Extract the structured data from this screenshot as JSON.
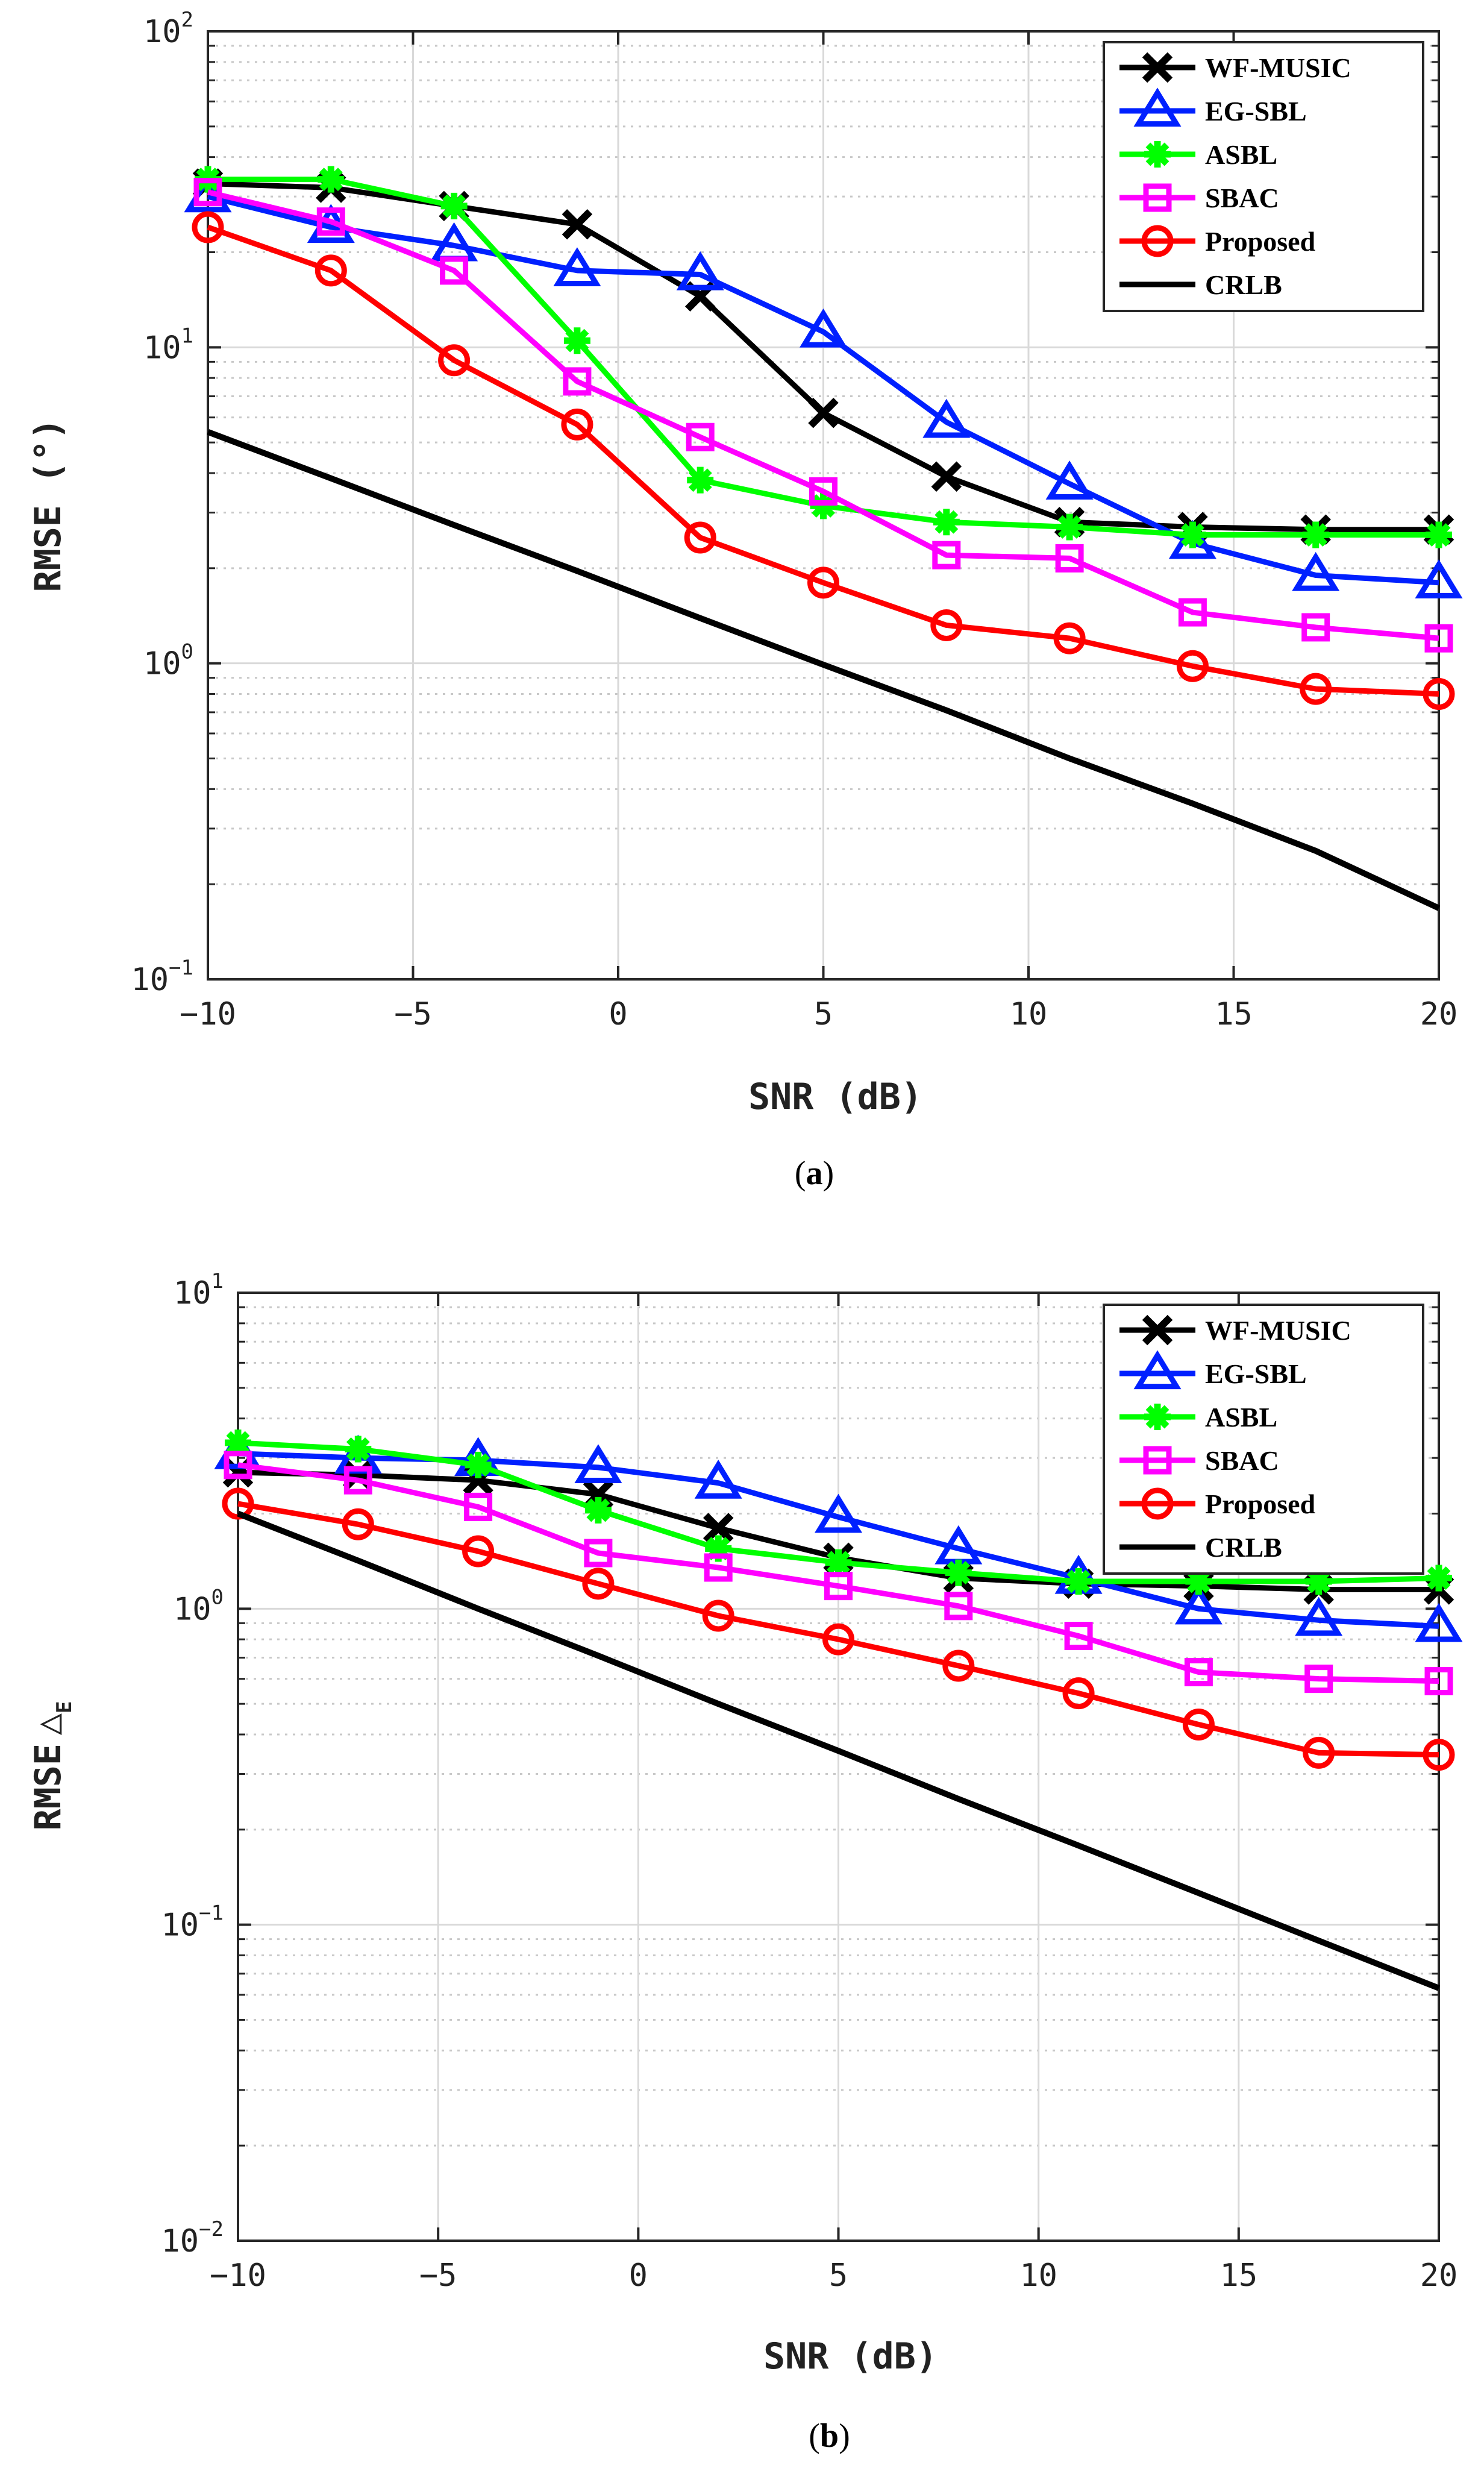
{
  "chart_data": [
    {
      "type": "line",
      "caption_letter": "a",
      "xlabel": "SNR (dB)",
      "ylabel": "RMSE (°)",
      "yscale": "log",
      "xlim": [
        -10,
        20
      ],
      "ylim": [
        0.1,
        100
      ],
      "xticks": [
        "−10",
        "−5",
        "0",
        "5",
        "10",
        "15",
        "20"
      ],
      "xtick_values": [
        -10,
        -5,
        0,
        5,
        10,
        15,
        20
      ],
      "yticks": [
        {
          "base": "10",
          "exp": "−1",
          "value": 0.1
        },
        {
          "base": "10",
          "exp": "0",
          "value": 1
        },
        {
          "base": "10",
          "exp": "1",
          "value": 10
        },
        {
          "base": "10",
          "exp": "2",
          "value": 100
        }
      ],
      "grid": true,
      "legend_position": "top-right",
      "x": [
        -10,
        -7,
        -4,
        -1,
        2,
        5,
        8,
        11,
        14,
        17,
        20
      ],
      "series": [
        {
          "name": "WF-MUSIC",
          "color": "#000000",
          "marker": "x",
          "values": [
            33,
            32,
            28,
            24.5,
            14.5,
            6.2,
            3.9,
            2.8,
            2.7,
            2.65,
            2.65
          ]
        },
        {
          "name": "EG-SBL",
          "color": "#0020ff",
          "marker": "triangle",
          "values": [
            30,
            24,
            21,
            17.5,
            17,
            11.2,
            5.8,
            3.7,
            2.4,
            1.9,
            1.8
          ]
        },
        {
          "name": "ASBL",
          "color": "#00ff00",
          "marker": "star",
          "values": [
            34,
            34,
            28,
            10.5,
            3.8,
            3.15,
            2.8,
            2.7,
            2.55,
            2.55,
            2.55
          ]
        },
        {
          "name": "SBAC",
          "color": "#ff00ff",
          "marker": "square",
          "values": [
            31,
            25,
            17.5,
            7.8,
            5.2,
            3.5,
            2.2,
            2.15,
            1.45,
            1.3,
            1.2
          ]
        },
        {
          "name": "Proposed",
          "color": "#ff0000",
          "marker": "circle",
          "values": [
            24,
            17.5,
            9.1,
            5.7,
            2.5,
            1.8,
            1.32,
            1.2,
            0.98,
            0.83,
            0.8
          ]
        },
        {
          "name": "CRLB",
          "color": "#000000",
          "marker": "none",
          "values": [
            5.4,
            3.85,
            2.74,
            1.96,
            1.39,
            0.99,
            0.71,
            0.5,
            0.36,
            0.255,
            0.168
          ]
        }
      ]
    },
    {
      "type": "line",
      "caption_letter": "b",
      "xlabel": "SNR (dB)",
      "ylabel": "RMSE",
      "ylabel_symbol": "△",
      "ylabel_sub": "E",
      "yscale": "log",
      "xlim": [
        -10,
        20
      ],
      "ylim": [
        0.01,
        10
      ],
      "xticks": [
        "−10",
        "−5",
        "0",
        "5",
        "10",
        "15",
        "20"
      ],
      "xtick_values": [
        -10,
        -5,
        0,
        5,
        10,
        15,
        20
      ],
      "yticks": [
        {
          "base": "10",
          "exp": "−2",
          "value": 0.01
        },
        {
          "base": "10",
          "exp": "−1",
          "value": 0.1
        },
        {
          "base": "10",
          "exp": "0",
          "value": 1
        },
        {
          "base": "10",
          "exp": "1",
          "value": 10
        }
      ],
      "grid": true,
      "legend_position": "top-right",
      "x": [
        -10,
        -7,
        -4,
        -1,
        2,
        5,
        8,
        11,
        14,
        17,
        20
      ],
      "series": [
        {
          "name": "WF-MUSIC",
          "color": "#000000",
          "marker": "x",
          "values": [
            2.7,
            2.65,
            2.55,
            2.3,
            1.8,
            1.45,
            1.25,
            1.2,
            1.18,
            1.15,
            1.15
          ]
        },
        {
          "name": "EG-SBL",
          "color": "#0020ff",
          "marker": "triangle",
          "values": [
            3.1,
            3.0,
            2.95,
            2.8,
            2.5,
            1.95,
            1.55,
            1.25,
            1.0,
            0.92,
            0.88
          ]
        },
        {
          "name": "ASBL",
          "color": "#00ff00",
          "marker": "star",
          "values": [
            3.35,
            3.2,
            2.85,
            2.05,
            1.55,
            1.4,
            1.3,
            1.22,
            1.22,
            1.22,
            1.25
          ]
        },
        {
          "name": "SBAC",
          "color": "#ff00ff",
          "marker": "square",
          "values": [
            2.85,
            2.55,
            2.1,
            1.5,
            1.35,
            1.18,
            1.02,
            0.82,
            0.63,
            0.6,
            0.59
          ]
        },
        {
          "name": "Proposed",
          "color": "#ff0000",
          "marker": "circle",
          "values": [
            2.15,
            1.85,
            1.52,
            1.2,
            0.95,
            0.8,
            0.66,
            0.54,
            0.43,
            0.35,
            0.345
          ]
        },
        {
          "name": "CRLB",
          "color": "#000000",
          "marker": "none",
          "values": [
            2.0,
            1.42,
            1.0,
            0.71,
            0.5,
            0.355,
            0.25,
            0.178,
            0.126,
            0.089,
            0.063
          ]
        }
      ]
    }
  ]
}
